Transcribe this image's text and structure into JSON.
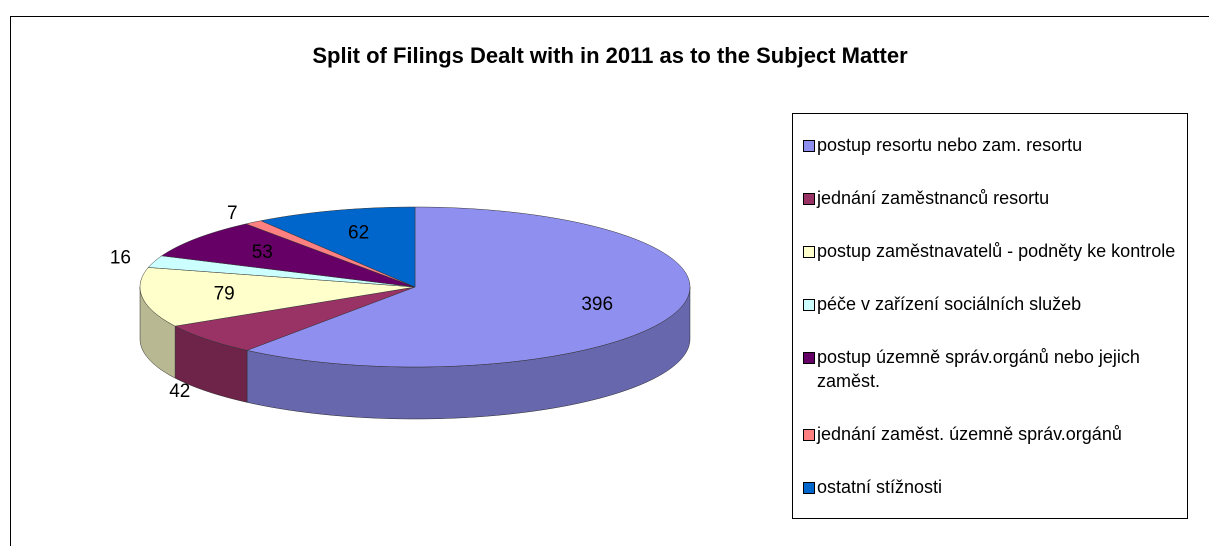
{
  "chart_data": {
    "type": "pie3d",
    "title": "Split of Filings Dealt with in 2011 as to the Subject Matter",
    "categories": [
      "postup resortu nebo zam. resortu",
      "jednání zaměstnanců resortu",
      "postup zaměstnavatelů - podněty ke kontrole",
      "péče v zařízení sociálních služeb",
      "postup územně správ.orgánů nebo jejich zaměst.",
      "jednání zaměst. územně správ.orgánů",
      "ostatní stížnosti"
    ],
    "values": [
      396,
      42,
      79,
      16,
      53,
      7,
      62
    ],
    "colors": [
      "#8f8ff0",
      "#993366",
      "#ffffcc",
      "#ccffff",
      "#660066",
      "#ff8080",
      "#0066cc"
    ],
    "legend": "right"
  }
}
